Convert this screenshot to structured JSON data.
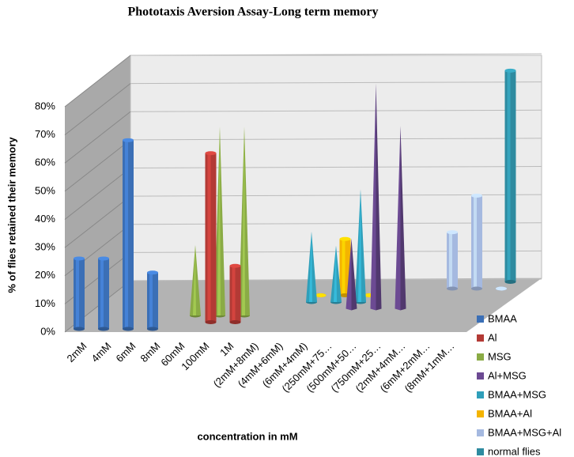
{
  "chart_data": {
    "type": "bar3d",
    "title": "Phototaxis Aversion Assay-Long term memory",
    "ylabel": "% of  flies  retained  their memory",
    "xlabel": "concentration in mM",
    "categories": [
      "2mM",
      "4mM",
      "6mM",
      "8mM",
      "60mM",
      "100mM",
      "1M",
      "(2mM+8mM)",
      "(4mM+6mM)",
      "(6mM+4mM)",
      "(250mM+75…",
      "(500mM+50…",
      "(750mM+25…",
      "(2mM+4mM…",
      "(6mM+2mM…",
      "(8mM+1mM…"
    ],
    "ylim": [
      0,
      80
    ],
    "yticks": [
      {
        "value": 0,
        "label": "0%"
      },
      {
        "value": 10,
        "label": "10%"
      },
      {
        "value": 20,
        "label": "20%"
      },
      {
        "value": 30,
        "label": "30%"
      },
      {
        "value": 40,
        "label": "40%"
      },
      {
        "value": 50,
        "label": "50%"
      },
      {
        "value": 60,
        "label": "60%"
      },
      {
        "value": 70,
        "label": "70%"
      },
      {
        "value": 80,
        "label": "80%"
      }
    ],
    "grid": true,
    "legend": "right",
    "series": [
      {
        "name": "BMAA",
        "color": "#3b6fb6",
        "shape": "cylinder",
        "values": [
          25,
          25,
          67,
          20,
          null,
          null,
          null,
          null,
          null,
          null,
          null,
          null,
          null,
          null,
          null,
          null
        ]
      },
      {
        "name": "Al",
        "color": "#b33a35",
        "shape": "cylinder",
        "values": [
          null,
          null,
          null,
          null,
          null,
          60,
          20,
          null,
          null,
          null,
          null,
          null,
          null,
          null,
          null,
          null
        ]
      },
      {
        "name": "MSG",
        "color": "#8aab45",
        "shape": "cone",
        "values": [
          null,
          null,
          null,
          null,
          25,
          67,
          67,
          null,
          null,
          null,
          null,
          null,
          null,
          null,
          null,
          null
        ]
      },
      {
        "name": "Al+MSG",
        "color": "#6c4a93",
        "shape": "pyramid",
        "values": [
          null,
          null,
          null,
          null,
          null,
          null,
          null,
          null,
          null,
          null,
          25,
          80,
          65,
          null,
          null,
          null
        ]
      },
      {
        "name": "BMAA+MSG",
        "color": "#2f9fba",
        "shape": "cone",
        "values": [
          null,
          null,
          null,
          null,
          null,
          null,
          null,
          null,
          25,
          20,
          40,
          null,
          null,
          null,
          null,
          null
        ]
      },
      {
        "name": "BMAA+Al",
        "color": "#f4b400",
        "shape": "cylinder",
        "values": [
          null,
          null,
          null,
          null,
          null,
          null,
          null,
          null,
          0,
          20,
          0,
          null,
          null,
          null,
          null,
          null
        ]
      },
      {
        "name": "BMAA+MSG+Al",
        "color": "#a5b9e0",
        "shape": "cylinder",
        "values": [
          null,
          null,
          null,
          null,
          null,
          null,
          null,
          null,
          null,
          null,
          null,
          null,
          null,
          20,
          33,
          0
        ]
      },
      {
        "name": "normal flies",
        "color": "#2e8ba0",
        "shape": "cylinder",
        "values": [
          null,
          null,
          null,
          null,
          null,
          null,
          null,
          null,
          null,
          null,
          null,
          null,
          null,
          null,
          null,
          75
        ]
      }
    ]
  }
}
